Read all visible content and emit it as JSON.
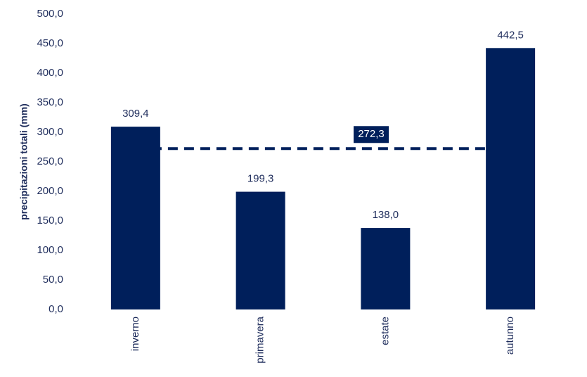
{
  "chart_data": {
    "type": "bar",
    "y_label": "precipitazioni totali (mm)",
    "categories": [
      "inverno",
      "primavera",
      "estate",
      "autunno"
    ],
    "values": [
      309.4,
      199.3,
      138.0,
      442.5
    ],
    "value_labels": [
      "309,4",
      "199,3",
      "138,0",
      "442,5"
    ],
    "color": "#001f5b",
    "reference": {
      "value": 272.3,
      "label": "272,3"
    },
    "ylim": [
      0,
      500
    ],
    "yticks": [
      {
        "value": 0,
        "label": "0,0"
      },
      {
        "value": 50,
        "label": "50,0"
      },
      {
        "value": 100,
        "label": "100,0"
      },
      {
        "value": 150,
        "label": "150,0"
      },
      {
        "value": 200,
        "label": "200,0"
      },
      {
        "value": 250,
        "label": "250,0"
      },
      {
        "value": 300,
        "label": "300,0"
      },
      {
        "value": 350,
        "label": "350,0"
      },
      {
        "value": 400,
        "label": "400,0"
      },
      {
        "value": 450,
        "label": "450,0"
      },
      {
        "value": 500,
        "label": "500,0"
      }
    ],
    "grid": false
  }
}
